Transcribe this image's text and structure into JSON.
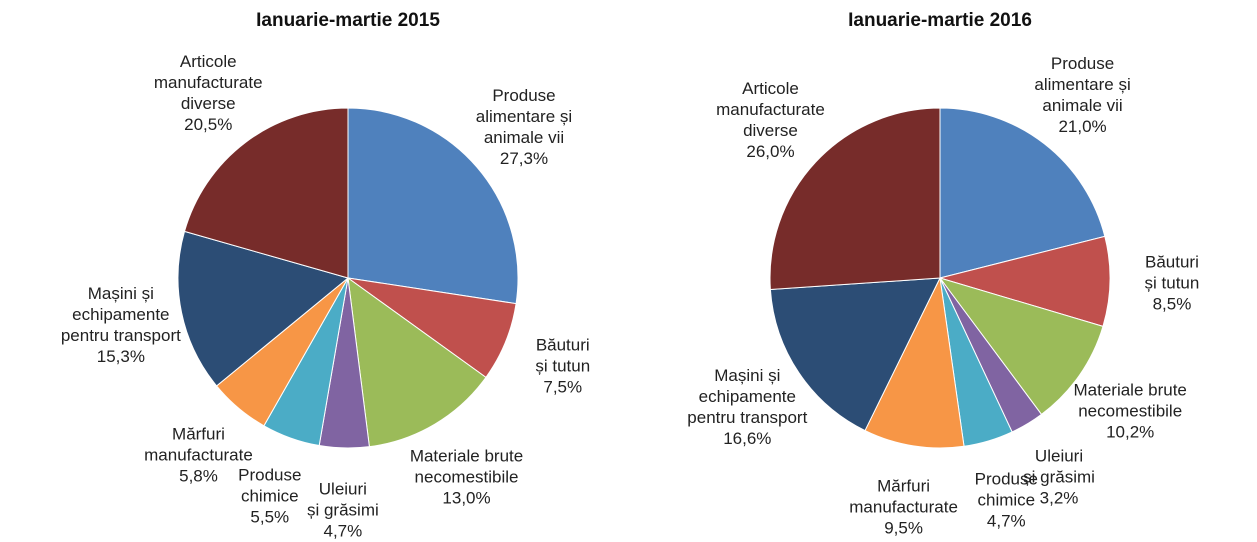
{
  "chart_data": [
    {
      "type": "pie",
      "title": "Ianuarie-martie 2015",
      "categories": [
        "Produse\nalimentare și\nanimale vii",
        "Băuturi\nși tutun",
        "Materiale brute\nnecomestibile",
        "Uleiuri\nși grăsimi",
        "Produse\nchimice",
        "Mărfuri\nmanufacturate",
        "Mașini și\nechipamente\npentru transport",
        "Articole\nmanufacturate\ndiverse"
      ],
      "values": [
        27.3,
        7.5,
        13.0,
        4.7,
        5.5,
        5.8,
        15.3,
        20.5
      ],
      "value_labels": [
        "27,3%",
        "7,5%",
        "13,0%",
        "4,7%",
        "5,5%",
        "5,8%",
        "15,3%",
        "20,5%"
      ],
      "colors": [
        "#4f81bd",
        "#c0504d",
        "#9bbb59",
        "#8064a2",
        "#4bacc6",
        "#f79646",
        "#2c4d75",
        "#772c2a"
      ]
    },
    {
      "type": "pie",
      "title": "Ianuarie-martie 2016",
      "categories": [
        "Produse\nalimentare și\nanimale vii",
        "Băuturi\nși tutun",
        "Materiale brute\nnecomestibile",
        "Uleiuri\nși grăsimi",
        "Produse\nchimice",
        "Mărfuri\nmanufacturate",
        "Mașini și\nechipamente\npentru transport",
        "Articole\nmanufacturate\ndiverse"
      ],
      "values": [
        21.0,
        8.5,
        10.2,
        3.2,
        4.7,
        9.5,
        16.6,
        26.0
      ],
      "value_labels": [
        "21,0%",
        "8,5%",
        "10,2%",
        "3,2%",
        "4,7%",
        "9,5%",
        "16,6%",
        "26,0%"
      ],
      "colors": [
        "#4f81bd",
        "#c0504d",
        "#9bbb59",
        "#8064a2",
        "#4bacc6",
        "#f79646",
        "#2c4d75",
        "#772c2a"
      ]
    }
  ]
}
